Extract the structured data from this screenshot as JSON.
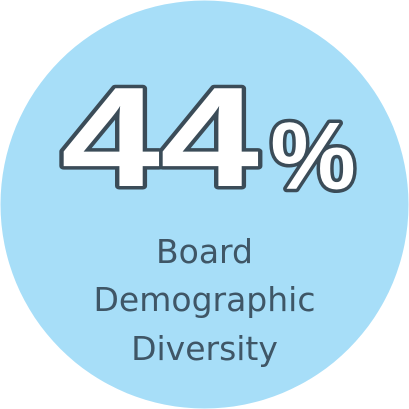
{
  "stat": {
    "number": "44",
    "unit": "%"
  },
  "label": [
    "Board",
    "Demographic",
    "Diversity"
  ]
}
